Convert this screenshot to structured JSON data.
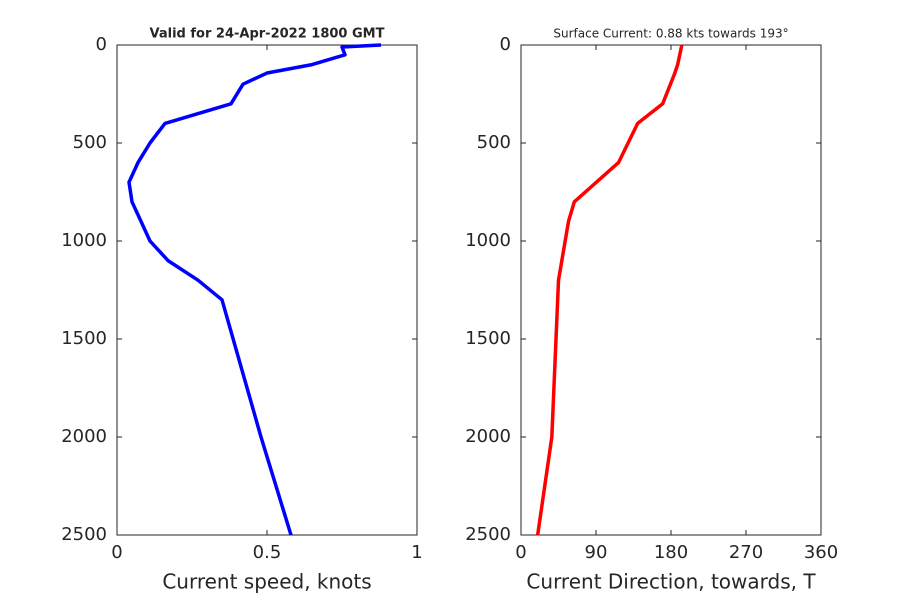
{
  "chart_data": [
    {
      "type": "line",
      "title": "Valid for 24-Apr-2022 1800 GMT",
      "xlabel": "Current speed, knots",
      "values": [
        0.88,
        0.75,
        0.76,
        0.65,
        0.5,
        0.42,
        0.38,
        0.16,
        0.11,
        0.07,
        0.04,
        0.05,
        0.08,
        0.11,
        0.17,
        0.27,
        0.35,
        0.48,
        0.58
      ],
      "depths": [
        0,
        10,
        50,
        100,
        143,
        200,
        300,
        400,
        500,
        600,
        700,
        800,
        900,
        1000,
        1100,
        1200,
        1300,
        2000,
        2500
      ],
      "color": "#0000ff",
      "xlim": [
        0,
        1
      ],
      "xticks": [
        0,
        0.5,
        1
      ],
      "ylim": [
        0,
        2500
      ],
      "yticks": [
        0,
        500,
        1000,
        1500,
        2000,
        2500
      ],
      "y_reversed": true
    },
    {
      "type": "line",
      "title": "Surface Current: 0.88 kts towards 193°",
      "xlabel": "Current Direction, towards, T",
      "values": [
        193,
        188,
        184,
        170,
        140,
        117,
        64,
        57,
        45,
        42,
        37,
        20
      ],
      "depths": [
        0,
        100,
        150,
        300,
        400,
        600,
        800,
        900,
        1200,
        1500,
        2000,
        2500
      ],
      "color": "#ff0000",
      "xlim": [
        0,
        360
      ],
      "xticks": [
        0,
        90,
        180,
        270,
        360
      ],
      "ylim": [
        0,
        2500
      ],
      "yticks": [
        0,
        500,
        1000,
        1500,
        2000,
        2500
      ],
      "y_reversed": true
    }
  ]
}
